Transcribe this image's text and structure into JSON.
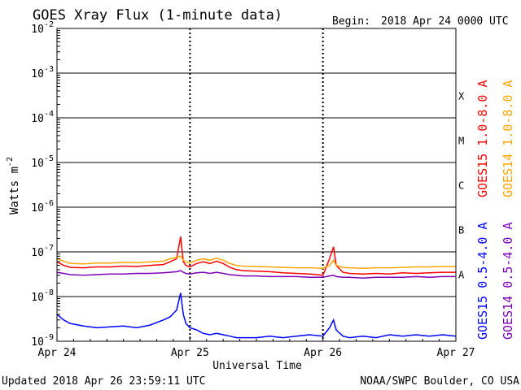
{
  "chart_data": {
    "type": "line",
    "title": "GOES Xray Flux (1-minute data)",
    "begin_label": "Begin:",
    "begin_value": "2018 Apr 24 0000 UTC",
    "xlabel": "Universal Time",
    "ylabel": "Watts m",
    "ylabel_exp": "-2",
    "y_scale": "log",
    "ylim": [
      1e-09,
      0.01
    ],
    "y_ticks": [
      {
        "base": "10",
        "exp": "-2",
        "value": 0.01
      },
      {
        "base": "10",
        "exp": "-3",
        "value": 0.001
      },
      {
        "base": "10",
        "exp": "-4",
        "value": 0.0001
      },
      {
        "base": "10",
        "exp": "-5",
        "value": 1e-05
      },
      {
        "base": "10",
        "exp": "-6",
        "value": 1e-06
      },
      {
        "base": "10",
        "exp": "-7",
        "value": 1e-07
      },
      {
        "base": "10",
        "exp": "-8",
        "value": 1e-08
      },
      {
        "base": "10",
        "exp": "-9",
        "value": 1e-09
      }
    ],
    "x_ticks": [
      {
        "label": "Apr 24",
        "day": 0
      },
      {
        "label": "Apr 25",
        "day": 1
      },
      {
        "label": "Apr 26",
        "day": 2
      },
      {
        "label": "Apr 27",
        "day": 3
      }
    ],
    "xlim": [
      0,
      3
    ],
    "flare_classes": [
      {
        "label": "X",
        "value": 0.0001
      },
      {
        "label": "M",
        "value": 1e-05
      },
      {
        "label": "C",
        "value": 1e-06
      },
      {
        "label": "B",
        "value": 1e-07
      },
      {
        "label": "A",
        "value": 1e-08
      }
    ],
    "grid": true,
    "series": [
      {
        "name": "GOES15 1.0-8.0 A",
        "color": "#ff0000",
        "x": [
          0,
          0.05,
          0.1,
          0.2,
          0.3,
          0.4,
          0.5,
          0.6,
          0.7,
          0.8,
          0.85,
          0.9,
          0.93,
          0.95,
          0.97,
          1.0,
          1.05,
          1.1,
          1.15,
          1.2,
          1.25,
          1.3,
          1.35,
          1.4,
          1.5,
          1.6,
          1.7,
          1.8,
          1.9,
          2.0,
          2.05,
          2.08,
          2.1,
          2.15,
          2.2,
          2.3,
          2.4,
          2.5,
          2.6,
          2.7,
          2.8,
          2.9,
          3.0
        ],
        "y": [
          6e-08,
          5e-08,
          4.5e-08,
          4.4e-08,
          4.6e-08,
          4.6e-08,
          4.8e-08,
          4.7e-08,
          5e-08,
          5.2e-08,
          6e-08,
          7e-08,
          2.2e-07,
          6e-08,
          5e-08,
          4.6e-08,
          5.5e-08,
          6e-08,
          5.5e-08,
          6.2e-08,
          5.5e-08,
          4.5e-08,
          4e-08,
          3.8e-08,
          3.7e-08,
          3.6e-08,
          3.4e-08,
          3.3e-08,
          3.2e-08,
          3e-08,
          7e-08,
          1.3e-07,
          5e-08,
          3.5e-08,
          3.3e-08,
          3.2e-08,
          3.3e-08,
          3.2e-08,
          3.4e-08,
          3.3e-08,
          3.4e-08,
          3.5e-08,
          3.5e-08
        ]
      },
      {
        "name": "GOES14 1.0-8.0 A",
        "color": "#ffa500",
        "x": [
          0,
          0.05,
          0.1,
          0.2,
          0.3,
          0.4,
          0.5,
          0.6,
          0.7,
          0.8,
          0.85,
          0.9,
          0.93,
          0.95,
          0.97,
          1.0,
          1.05,
          1.1,
          1.15,
          1.2,
          1.25,
          1.3,
          1.35,
          1.4,
          1.5,
          1.6,
          1.7,
          1.8,
          1.9,
          2.0,
          2.05,
          2.08,
          2.1,
          2.15,
          2.2,
          2.3,
          2.4,
          2.5,
          2.6,
          2.7,
          2.8,
          2.9,
          3.0
        ],
        "y": [
          7e-08,
          6.2e-08,
          5.5e-08,
          5.4e-08,
          5.6e-08,
          5.6e-08,
          5.8e-08,
          5.7e-08,
          6e-08,
          6.2e-08,
          7e-08,
          7.5e-08,
          8e-08,
          6.5e-08,
          6e-08,
          5.6e-08,
          6.5e-08,
          7e-08,
          6.5e-08,
          7.2e-08,
          6.5e-08,
          5.5e-08,
          5e-08,
          4.8e-08,
          4.7e-08,
          4.6e-08,
          4.5e-08,
          4.4e-08,
          4.4e-08,
          4.3e-08,
          5e-08,
          6.5e-08,
          5e-08,
          4.5e-08,
          4.4e-08,
          4.3e-08,
          4.4e-08,
          4.4e-08,
          4.5e-08,
          4.6e-08,
          4.6e-08,
          4.7e-08,
          4.7e-08
        ]
      },
      {
        "name": "GOES15 0.5-4.0 A",
        "color": "#0000ff",
        "x": [
          0,
          0.05,
          0.1,
          0.2,
          0.3,
          0.4,
          0.5,
          0.6,
          0.7,
          0.8,
          0.85,
          0.9,
          0.93,
          0.95,
          0.97,
          1.0,
          1.05,
          1.1,
          1.15,
          1.2,
          1.25,
          1.3,
          1.35,
          1.4,
          1.5,
          1.6,
          1.7,
          1.8,
          1.9,
          2.0,
          2.05,
          2.08,
          2.1,
          2.15,
          2.2,
          2.3,
          2.4,
          2.5,
          2.6,
          2.7,
          2.8,
          2.9,
          3.0
        ],
        "y": [
          4e-09,
          3e-09,
          2.5e-09,
          2.2e-09,
          2e-09,
          2.1e-09,
          2.2e-09,
          2e-09,
          2.3e-09,
          3e-09,
          3.5e-09,
          5e-09,
          1.2e-08,
          4e-09,
          2.5e-09,
          2e-09,
          1.8e-09,
          1.5e-09,
          1.4e-09,
          1.5e-09,
          1.4e-09,
          1.3e-09,
          1.2e-09,
          1.2e-09,
          1.2e-09,
          1.3e-09,
          1.2e-09,
          1.3e-09,
          1.4e-09,
          1.3e-09,
          2e-09,
          3e-09,
          1.8e-09,
          1.3e-09,
          1.2e-09,
          1.3e-09,
          1.2e-09,
          1.4e-09,
          1.3e-09,
          1.4e-09,
          1.3e-09,
          1.4e-09,
          1.3e-09
        ]
      },
      {
        "name": "GOES14 0.5-4.0 A",
        "color": "#7b00b5",
        "x": [
          0,
          0.05,
          0.1,
          0.2,
          0.3,
          0.4,
          0.5,
          0.6,
          0.7,
          0.8,
          0.85,
          0.9,
          0.93,
          0.95,
          0.97,
          1.0,
          1.05,
          1.1,
          1.15,
          1.2,
          1.25,
          1.3,
          1.35,
          1.4,
          1.5,
          1.6,
          1.7,
          1.8,
          1.9,
          2.0,
          2.05,
          2.08,
          2.1,
          2.15,
          2.2,
          2.3,
          2.4,
          2.5,
          2.6,
          2.7,
          2.8,
          2.9,
          3.0
        ],
        "y": [
          3.5e-08,
          3.3e-08,
          3.1e-08,
          3e-08,
          3.1e-08,
          3.2e-08,
          3.2e-08,
          3.3e-08,
          3.3e-08,
          3.4e-08,
          3.5e-08,
          3.6e-08,
          3.8e-08,
          3.5e-08,
          3.3e-08,
          3.2e-08,
          3.4e-08,
          3.5e-08,
          3.3e-08,
          3.5e-08,
          3.3e-08,
          3.1e-08,
          3e-08,
          2.9e-08,
          2.9e-08,
          2.8e-08,
          2.8e-08,
          2.8e-08,
          2.7e-08,
          2.7e-08,
          2.9e-08,
          3e-08,
          2.8e-08,
          2.7e-08,
          2.7e-08,
          2.6e-08,
          2.7e-08,
          2.7e-08,
          2.7e-08,
          2.8e-08,
          2.7e-08,
          2.8e-08,
          2.8e-08
        ]
      }
    ]
  },
  "footer": {
    "updated": "Updated 2018 Apr 26 23:59:11 UTC",
    "credit": "NOAA/SWPC Boulder, CO USA"
  }
}
